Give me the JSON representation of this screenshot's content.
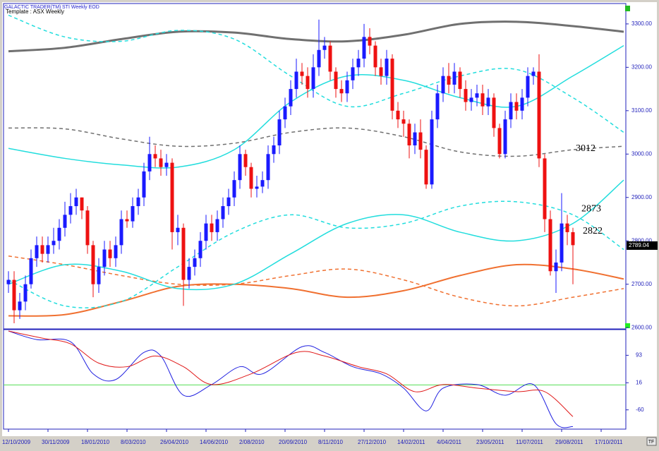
{
  "chart_data": [
    {
      "type": "candlestick",
      "title": "GALACTIC TRADER(TM)",
      "subtitle": "STI Weekly EOD",
      "template": "Template : ASX Weekly",
      "up_color": "#1a1aff",
      "down_color": "#ee1111",
      "open": [
        2700,
        2710,
        2640,
        2660,
        2700,
        2760,
        2790,
        2770,
        2790,
        2800,
        2830,
        2860,
        2880,
        2900,
        2870,
        2790,
        2700,
        2740,
        2780,
        2760,
        2790,
        2850,
        2845,
        2880,
        2900,
        2960,
        3000,
        2990,
        2970,
        2980,
        2820,
        2830,
        2710,
        2740,
        2760,
        2800,
        2840,
        2820,
        2850,
        2880,
        2900,
        2940,
        3000,
        2970,
        2920,
        2925,
        2940,
        3000,
        3020,
        3080,
        3110,
        3150,
        3190,
        3180,
        3150,
        3200,
        3240,
        3250,
        3190,
        3150,
        3140,
        3170,
        3200,
        3220,
        3270,
        3250,
        3200,
        3180,
        3220,
        3100,
        3080,
        3070,
        3020,
        3050,
        3010,
        2930,
        3080,
        3140,
        3180,
        3160,
        3190,
        3150,
        3120,
        3130,
        3140,
        3110,
        3130,
        3060,
        3000,
        3080,
        3120,
        3100,
        3130,
        3180,
        3190,
        2990,
        2850,
        2730,
        2750,
        2840,
        2820
      ],
      "high": [
        2730,
        2730,
        2680,
        2720,
        2780,
        2810,
        2810,
        2810,
        2830,
        2850,
        2890,
        2910,
        2920,
        2900,
        2880,
        2800,
        2760,
        2800,
        2800,
        2810,
        2870,
        2870,
        2900,
        2920,
        2980,
        3040,
        3020,
        3010,
        3000,
        2990,
        2860,
        2840,
        2760,
        2780,
        2820,
        2860,
        2860,
        2870,
        2900,
        2920,
        2960,
        3020,
        3010,
        2980,
        2950,
        2960,
        3020,
        3040,
        3100,
        3130,
        3170,
        3220,
        3210,
        3200,
        3230,
        3310,
        3270,
        3260,
        3200,
        3170,
        3190,
        3220,
        3240,
        3300,
        3290,
        3260,
        3220,
        3240,
        3230,
        3120,
        3100,
        3080,
        3070,
        3080,
        3020,
        3100,
        3160,
        3200,
        3210,
        3210,
        3200,
        3170,
        3150,
        3160,
        3160,
        3150,
        3140,
        3070,
        3100,
        3140,
        3140,
        3150,
        3200,
        3200,
        3230,
        3000,
        2870,
        2780,
        2910,
        2860,
        2830
      ],
      "low": [
        2680,
        2610,
        2620,
        2640,
        2690,
        2740,
        2750,
        2750,
        2770,
        2780,
        2810,
        2840,
        2860,
        2850,
        2770,
        2670,
        2680,
        2720,
        2740,
        2740,
        2770,
        2830,
        2830,
        2860,
        2880,
        2940,
        2970,
        2950,
        2950,
        2780,
        2790,
        2650,
        2690,
        2720,
        2740,
        2780,
        2800,
        2800,
        2830,
        2860,
        2880,
        2920,
        2950,
        2900,
        2900,
        2910,
        2920,
        2980,
        3000,
        3060,
        3090,
        3130,
        3160,
        3130,
        3130,
        3180,
        3220,
        3170,
        3130,
        3120,
        3120,
        3150,
        3180,
        3200,
        3230,
        3180,
        3160,
        3160,
        3080,
        3060,
        3040,
        2990,
        3000,
        2990,
        2920,
        2920,
        3060,
        3120,
        3140,
        3140,
        3130,
        3100,
        3100,
        3110,
        3090,
        3090,
        3040,
        2990,
        2990,
        3060,
        3080,
        3080,
        3110,
        3160,
        2970,
        2820,
        2720,
        2680,
        2730,
        2790,
        2700
      ],
      "close": [
        2710,
        2640,
        2660,
        2700,
        2760,
        2790,
        2770,
        2790,
        2800,
        2830,
        2860,
        2880,
        2900,
        2870,
        2790,
        2700,
        2740,
        2780,
        2760,
        2790,
        2850,
        2845,
        2880,
        2900,
        2960,
        3000,
        2990,
        2970,
        2980,
        2820,
        2830,
        2710,
        2740,
        2760,
        2800,
        2840,
        2820,
        2850,
        2880,
        2900,
        2940,
        3000,
        2970,
        2920,
        2925,
        2940,
        3000,
        3020,
        3080,
        3110,
        3150,
        3190,
        3180,
        3150,
        3200,
        3240,
        3250,
        3190,
        3150,
        3140,
        3170,
        3200,
        3220,
        3270,
        3250,
        3200,
        3180,
        3220,
        3100,
        3080,
        3070,
        3020,
        3050,
        3010,
        2930,
        3080,
        3140,
        3180,
        3160,
        3190,
        3150,
        3120,
        3130,
        3140,
        3110,
        3130,
        3060,
        3000,
        3080,
        3120,
        3100,
        3130,
        3180,
        3190,
        2990,
        2850,
        2730,
        2750,
        2840,
        2820,
        2790
      ],
      "overlays": [
        {
          "color": "#707070",
          "style": "solid",
          "width": 3,
          "x": [
            0,
            10,
            20,
            30,
            40,
            50,
            60,
            70,
            80,
            90,
            100,
            109
          ],
          "values": [
            3237,
            3245,
            3265,
            3282,
            3280,
            3265,
            3260,
            3275,
            3300,
            3305,
            3295,
            3282
          ]
        },
        {
          "color": "#707070",
          "style": "dashed",
          "width": 1.5,
          "x": [
            0,
            10,
            20,
            30,
            40,
            50,
            60,
            70,
            80,
            90,
            100,
            109
          ],
          "values": [
            3060,
            3058,
            3035,
            3018,
            3025,
            3050,
            3060,
            3040,
            3005,
            2995,
            3010,
            3018
          ]
        },
        {
          "color": "#f07030",
          "style": "solid",
          "width": 2,
          "x": [
            0,
            10,
            20,
            30,
            40,
            50,
            60,
            70,
            80,
            90,
            100,
            109
          ],
          "values": [
            2627,
            2630,
            2660,
            2695,
            2700,
            2690,
            2670,
            2685,
            2720,
            2745,
            2735,
            2712
          ]
        },
        {
          "color": "#f07030",
          "style": "dashed",
          "width": 1.5,
          "x": [
            0,
            10,
            20,
            30,
            40,
            50,
            60,
            70,
            80,
            90,
            100,
            109
          ],
          "values": [
            2765,
            2745,
            2720,
            2700,
            2700,
            2720,
            2735,
            2710,
            2670,
            2650,
            2670,
            2690
          ]
        },
        {
          "color": "#22dddd",
          "style": "solid",
          "width": 1.5,
          "x": [
            0,
            10,
            20,
            30,
            40,
            50,
            60,
            70,
            80,
            90,
            100,
            109
          ],
          "values": [
            3013,
            2990,
            2975,
            2970,
            3010,
            3120,
            3180,
            3170,
            3130,
            3110,
            3180,
            3250
          ]
        },
        {
          "color": "#22dddd",
          "style": "dashed",
          "width": 1.5,
          "x": [
            0,
            10,
            20,
            30,
            40,
            50,
            60,
            70,
            80,
            90,
            100,
            109
          ],
          "values": [
            3320,
            3270,
            3260,
            3285,
            3265,
            3180,
            3110,
            3140,
            3180,
            3195,
            3130,
            3050
          ]
        },
        {
          "color": "#22dddd",
          "style": "solid",
          "width": 1.5,
          "x": [
            0,
            10,
            20,
            30,
            40,
            50,
            60,
            70,
            80,
            90,
            100,
            109
          ],
          "values": [
            2700,
            2745,
            2730,
            2690,
            2700,
            2770,
            2840,
            2860,
            2820,
            2800,
            2840,
            2940
          ]
        },
        {
          "color": "#22dddd",
          "style": "dashed",
          "width": 1.5,
          "x": [
            0,
            10,
            20,
            30,
            40,
            50,
            60,
            70,
            80,
            90,
            100,
            109
          ],
          "values": [
            2710,
            2650,
            2660,
            2740,
            2820,
            2860,
            2830,
            2840,
            2880,
            2890,
            2860,
            2780
          ]
        }
      ],
      "annotations": [
        {
          "label": "3012",
          "value": 3012
        },
        {
          "label": "2873",
          "value": 2873
        },
        {
          "label": "2822",
          "value": 2822
        }
      ],
      "last_price": {
        "value": 2789.04,
        "label": "2789.04"
      },
      "xlim": [
        -0.875,
        109.375
      ],
      "xticks": [
        {
          "value": 0,
          "label": "12/10/2009"
        },
        {
          "value": 7,
          "label": "30/11/2009"
        },
        {
          "value": 14,
          "label": "18/01/2010"
        },
        {
          "value": 21,
          "label": "8/03/2010"
        },
        {
          "value": 28,
          "label": "26/04/2010"
        },
        {
          "value": 35,
          "label": "14/06/2010"
        },
        {
          "value": 42,
          "label": "2/08/2010"
        },
        {
          "value": 49,
          "label": "20/09/2010"
        },
        {
          "value": 56,
          "label": "8/11/2010"
        },
        {
          "value": 63,
          "label": "27/12/2010"
        },
        {
          "value": 70,
          "label": "14/02/2011"
        },
        {
          "value": 77,
          "label": "4/04/2011"
        },
        {
          "value": 84,
          "label": "23/05/2011"
        },
        {
          "value": 91,
          "label": "11/07/2011"
        },
        {
          "value": 98,
          "label": "29/08/2011"
        },
        {
          "value": 105,
          "label": "17/10/2011"
        }
      ],
      "ylim": [
        2597,
        3347
      ],
      "yticks": [
        {
          "value": 2600,
          "label": "2600.00"
        },
        {
          "value": 2700,
          "label": "2700.00"
        },
        {
          "value": 2800,
          "label": "2800.00"
        },
        {
          "value": 2900,
          "label": "2900.00"
        },
        {
          "value": 3000,
          "label": "3000.00"
        },
        {
          "value": 3100,
          "label": "3100.00"
        },
        {
          "value": 3200,
          "label": "3200.00"
        },
        {
          "value": 3300,
          "label": "3300.00"
        }
      ]
    },
    {
      "type": "line",
      "series": [
        {
          "color": "#2020e0",
          "x": [
            0,
            5,
            11,
            15,
            19,
            24,
            27,
            31,
            36,
            41,
            45,
            52,
            56,
            61,
            66,
            70,
            74,
            77,
            83,
            88,
            93,
            97,
            100
          ],
          "values": [
            161,
            137,
            131,
            41,
            25,
            101,
            91,
            -19,
            11,
            61,
            41,
            117,
            101,
            61,
            41,
            1,
            -63,
            1,
            11,
            -19,
            11,
            -99,
            -107
          ]
        },
        {
          "color": "#e01818",
          "x": [
            0,
            6,
            11,
            16,
            21,
            26,
            31,
            36,
            43,
            51,
            56,
            62,
            67,
            72,
            77,
            83,
            90,
            95,
            100
          ],
          "values": [
            161,
            141,
            125,
            71,
            61,
            91,
            61,
            11,
            41,
            101,
            91,
            61,
            41,
            -9,
            11,
            1,
            -9,
            -9,
            -79
          ]
        }
      ],
      "reference_line": {
        "value": 10,
        "color": "#55dd55"
      },
      "ylim": [
        -114,
        165
      ],
      "yticks": [
        93,
        16,
        -60
      ]
    }
  ]
}
